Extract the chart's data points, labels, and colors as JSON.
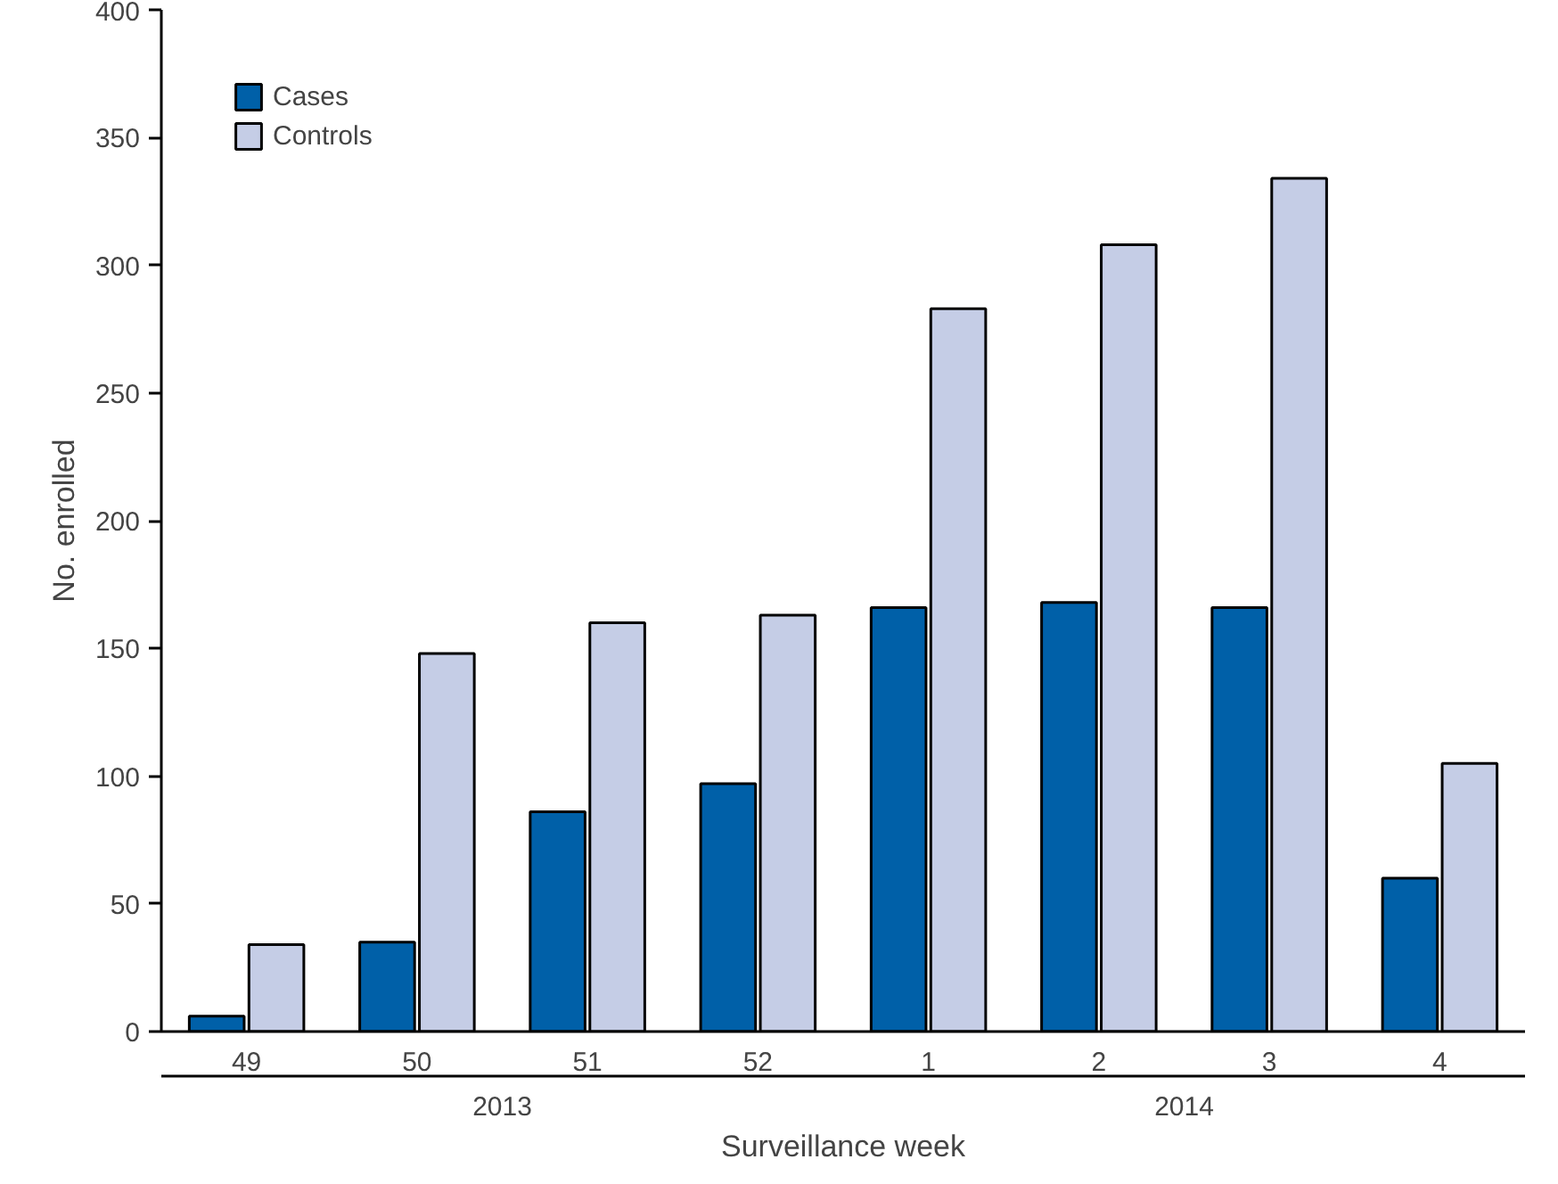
{
  "chart_data": {
    "type": "bar",
    "xlabel": "Surveillance week",
    "ylabel": "No. enrolled",
    "categories": [
      "49",
      "50",
      "51",
      "52",
      "1",
      "2",
      "3",
      "4"
    ],
    "series": [
      {
        "name": "Cases",
        "color": "#0060a8",
        "values": [
          6,
          35,
          86,
          97,
          166,
          168,
          166,
          60
        ]
      },
      {
        "name": "Controls",
        "color": "#c5cde6",
        "values": [
          34,
          148,
          160,
          163,
          283,
          308,
          334,
          105
        ]
      }
    ],
    "annotations": [
      "2013",
      "2014"
    ],
    "ylim": [
      0,
      400
    ],
    "yticks": [
      0,
      50,
      100,
      150,
      200,
      250,
      300,
      350,
      400
    ],
    "grid": false,
    "legend": "top left"
  }
}
